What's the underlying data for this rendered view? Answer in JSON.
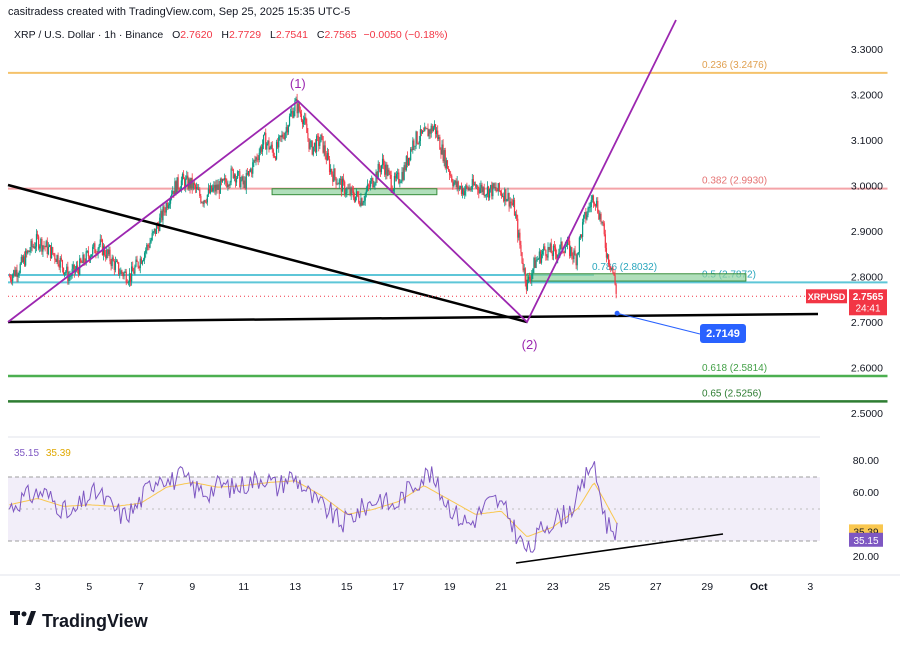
{
  "header": {
    "credit": "casitradess created with TradingView.com, Sep 25, 2025 15:35 UTC-5"
  },
  "legend": {
    "symbol": "XRP / U.S. Dollar · 1h · Binance",
    "open_label": "O",
    "open": "2.7620",
    "high_label": "H",
    "high": "2.7729",
    "low_label": "L",
    "low": "2.7541",
    "close_label": "C",
    "close": "2.7565",
    "change": "−0.0050 (−0.18%)"
  },
  "rsi_legend": {
    "rsi": "35.15",
    "ma": "35.39"
  },
  "footer": {
    "brand": "TradingView"
  },
  "colors": {
    "candle_up": "#089981",
    "candle_down": "#f23645",
    "elliott": "#9c27b0",
    "trend": "#000000",
    "fib_236": "#f5c26b",
    "fib_382": "#f4a3a8",
    "fib_5": "#5ec6d8",
    "fib_618": "#4caf50",
    "fib_65": "#2e7d32",
    "zone": "#8fd19e",
    "rsi_line": "#7e57c2",
    "rsi_ma": "#f9c74f"
  },
  "chart_data": {
    "type": "candlestick",
    "x_ticks": [
      "3",
      "5",
      "7",
      "9",
      "11",
      "13",
      "15",
      "17",
      "19",
      "21",
      "23",
      "25",
      "27",
      "29",
      "Oct",
      "3"
    ],
    "price_ticks": [
      "3.3000",
      "3.2000",
      "3.1000",
      "3.0000",
      "2.9000",
      "2.8000",
      "2.7000",
      "2.6000",
      "2.5000"
    ],
    "rsi_ticks": [
      "80.00",
      "60.00",
      "20.00"
    ],
    "price_path": [
      [
        1.9,
        2.8
      ],
      [
        2.3,
        2.82
      ],
      [
        2.7,
        2.86
      ],
      [
        3.0,
        2.88
      ],
      [
        3.4,
        2.86
      ],
      [
        3.8,
        2.84
      ],
      [
        4.2,
        2.8
      ],
      [
        4.6,
        2.82
      ],
      [
        5.0,
        2.85
      ],
      [
        5.4,
        2.87
      ],
      [
        5.8,
        2.84
      ],
      [
        6.2,
        2.81
      ],
      [
        6.6,
        2.8
      ],
      [
        7.0,
        2.84
      ],
      [
        7.4,
        2.88
      ],
      [
        7.8,
        2.93
      ],
      [
        8.2,
        2.99
      ],
      [
        8.6,
        3.01
      ],
      [
        9.0,
        3.0
      ],
      [
        9.4,
        2.97
      ],
      [
        9.8,
        2.99
      ],
      [
        10.2,
        3.0
      ],
      [
        10.6,
        3.03
      ],
      [
        11.0,
        3.0
      ],
      [
        11.4,
        3.05
      ],
      [
        11.8,
        3.1
      ],
      [
        12.2,
        3.07
      ],
      [
        12.6,
        3.12
      ],
      [
        13.0,
        3.18
      ],
      [
        13.3,
        3.15
      ],
      [
        13.6,
        3.08
      ],
      [
        14.0,
        3.1
      ],
      [
        14.4,
        3.03
      ],
      [
        14.8,
        3.0
      ],
      [
        15.2,
        2.98
      ],
      [
        15.6,
        2.97
      ],
      [
        16.0,
        3.01
      ],
      [
        16.4,
        3.05
      ],
      [
        16.8,
        3.0
      ],
      [
        17.2,
        3.03
      ],
      [
        17.6,
        3.1
      ],
      [
        18.0,
        3.11
      ],
      [
        18.4,
        3.13
      ],
      [
        18.8,
        3.06
      ],
      [
        19.2,
        3.0
      ],
      [
        19.6,
        2.99
      ],
      [
        20.0,
        3.0
      ],
      [
        20.4,
        2.99
      ],
      [
        20.8,
        2.99
      ],
      [
        21.2,
        2.98
      ],
      [
        21.5,
        2.95
      ],
      [
        21.8,
        2.84
      ],
      [
        22.0,
        2.78
      ],
      [
        22.3,
        2.83
      ],
      [
        22.7,
        2.86
      ],
      [
        23.1,
        2.85
      ],
      [
        23.5,
        2.87
      ],
      [
        23.9,
        2.84
      ],
      [
        24.2,
        2.92
      ],
      [
        24.6,
        2.98
      ],
      [
        24.9,
        2.92
      ],
      [
        25.1,
        2.85
      ],
      [
        25.3,
        2.82
      ],
      [
        25.5,
        2.757
      ]
    ],
    "last_price": {
      "label": "XRPUSD",
      "price": "2.7565",
      "countdown": "24:41"
    },
    "fib_levels": [
      {
        "level": "0.236 (3.2476)",
        "value": 3.2476,
        "x_end": 36
      },
      {
        "level": "0.382 (2.9930)",
        "value": 2.993,
        "x_end": 36
      },
      {
        "level": "0.786 (2.8032)",
        "value": 2.8032,
        "x_end": 24.6
      },
      {
        "level": "0.5 (2.7872)",
        "value": 2.7872,
        "x_end": 36
      },
      {
        "level": "0.618 (2.5814)",
        "value": 2.5814,
        "x_end": 36
      },
      {
        "level": "0.65 (2.5256)",
        "value": 2.5256,
        "x_end": 36
      }
    ],
    "elliott_labels": [
      {
        "text": "(1)",
        "x": 13.1,
        "y": 3.19
      },
      {
        "text": "(2)",
        "x": 22.1,
        "y": 2.695
      }
    ],
    "target_label": {
      "text": "2.7149",
      "x": 25.5,
      "y": 2.7149
    },
    "zones": [
      {
        "x1": 12.1,
        "x2": 18.5,
        "y1": 2.98,
        "y2": 2.993
      },
      {
        "x1": 22.0,
        "x2": 30.5,
        "y1": 2.79,
        "y2": 2.806
      }
    ],
    "rsi_path": [
      [
        1.9,
        50
      ],
      [
        2.5,
        57
      ],
      [
        3.2,
        60
      ],
      [
        3.8,
        52
      ],
      [
        4.3,
        44
      ],
      [
        4.8,
        55
      ],
      [
        5.3,
        60
      ],
      [
        5.8,
        52
      ],
      [
        6.3,
        45
      ],
      [
        6.8,
        50
      ],
      [
        7.3,
        63
      ],
      [
        7.8,
        72
      ],
      [
        8.1,
        66
      ],
      [
        8.6,
        70
      ],
      [
        9.1,
        62
      ],
      [
        9.6,
        60
      ],
      [
        10.1,
        65
      ],
      [
        10.6,
        62
      ],
      [
        11.2,
        66
      ],
      [
        11.8,
        70
      ],
      [
        12.3,
        63
      ],
      [
        12.8,
        70
      ],
      [
        13.2,
        66
      ],
      [
        13.7,
        55
      ],
      [
        14.3,
        48
      ],
      [
        14.8,
        40
      ],
      [
        15.3,
        46
      ],
      [
        15.8,
        52
      ],
      [
        16.3,
        57
      ],
      [
        16.8,
        50
      ],
      [
        17.3,
        60
      ],
      [
        17.8,
        68
      ],
      [
        18.2,
        72
      ],
      [
        18.7,
        58
      ],
      [
        19.3,
        45
      ],
      [
        19.8,
        40
      ],
      [
        20.4,
        52
      ],
      [
        20.8,
        55
      ],
      [
        21.3,
        45
      ],
      [
        21.7,
        30
      ],
      [
        22.1,
        22
      ],
      [
        22.6,
        38
      ],
      [
        23.1,
        43
      ],
      [
        23.6,
        47
      ],
      [
        24.1,
        60
      ],
      [
        24.5,
        80
      ],
      [
        24.8,
        62
      ],
      [
        25.1,
        40
      ],
      [
        25.5,
        36
      ]
    ],
    "rsi_ma_path": [
      [
        1.9,
        52
      ],
      [
        3.0,
        56
      ],
      [
        4.0,
        51
      ],
      [
        5.0,
        52
      ],
      [
        6.0,
        51
      ],
      [
        7.0,
        53
      ],
      [
        8.0,
        63
      ],
      [
        9.0,
        66
      ],
      [
        10.0,
        63
      ],
      [
        11.0,
        64
      ],
      [
        12.0,
        66
      ],
      [
        13.0,
        67
      ],
      [
        14.0,
        58
      ],
      [
        15.0,
        46
      ],
      [
        16.0,
        49
      ],
      [
        17.0,
        54
      ],
      [
        18.0,
        64
      ],
      [
        19.0,
        55
      ],
      [
        20.0,
        46
      ],
      [
        21.0,
        48
      ],
      [
        22.0,
        32
      ],
      [
        23.0,
        38
      ],
      [
        24.0,
        50
      ],
      [
        24.6,
        66
      ],
      [
        25.0,
        55
      ],
      [
        25.5,
        40
      ]
    ]
  }
}
